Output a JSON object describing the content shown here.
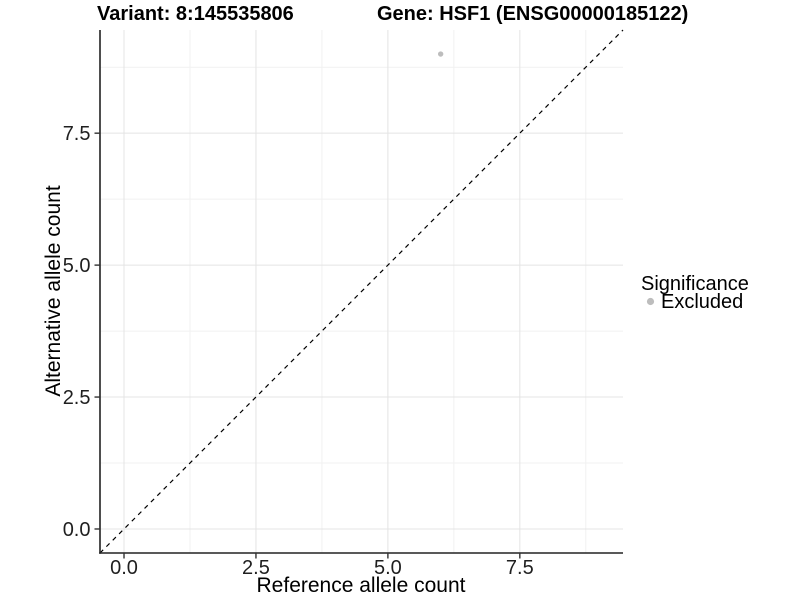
{
  "chart_data": {
    "type": "scatter",
    "titles": {
      "left": "Variant: 8:145535806",
      "right": "Gene: HSF1 (ENSG00000185122)"
    },
    "xlabel": "Reference allele count",
    "ylabel": "Alternative allele count",
    "xlim": [
      -0.455,
      9.455
    ],
    "ylim": [
      -0.455,
      9.455
    ],
    "x_ticks": [
      0,
      2.5,
      5,
      7.5
    ],
    "y_ticks": [
      0,
      2.5,
      5,
      7.5
    ],
    "x_tick_labels": [
      "0.0",
      "2.5",
      "5.0",
      "7.5"
    ],
    "y_tick_labels": [
      "0.0",
      "2.5",
      "5.0",
      "7.5"
    ],
    "minor_grid": [
      1.25,
      3.75,
      6.25,
      8.75
    ],
    "grid": "major+minor on white background",
    "series": [
      {
        "name": "Excluded",
        "color": "#bdbdbd",
        "point_radius_px": 2.7,
        "points": [
          {
            "x": 6,
            "y": 9
          }
        ]
      }
    ],
    "reference_line": {
      "kind": "identity y=x",
      "style": "dashed",
      "color": "#000000"
    },
    "legend": {
      "title": "Significance",
      "position": "right-center",
      "entries": [
        {
          "label": "Excluded",
          "color": "#bdbdbd"
        }
      ]
    },
    "colors": {
      "background": "#ffffff",
      "grid_major": "#e4e4e4",
      "grid_minor": "#f1f1f1",
      "axis_line": "#222222",
      "tick_mark": "#333333",
      "point": "#bdbdbd"
    }
  }
}
